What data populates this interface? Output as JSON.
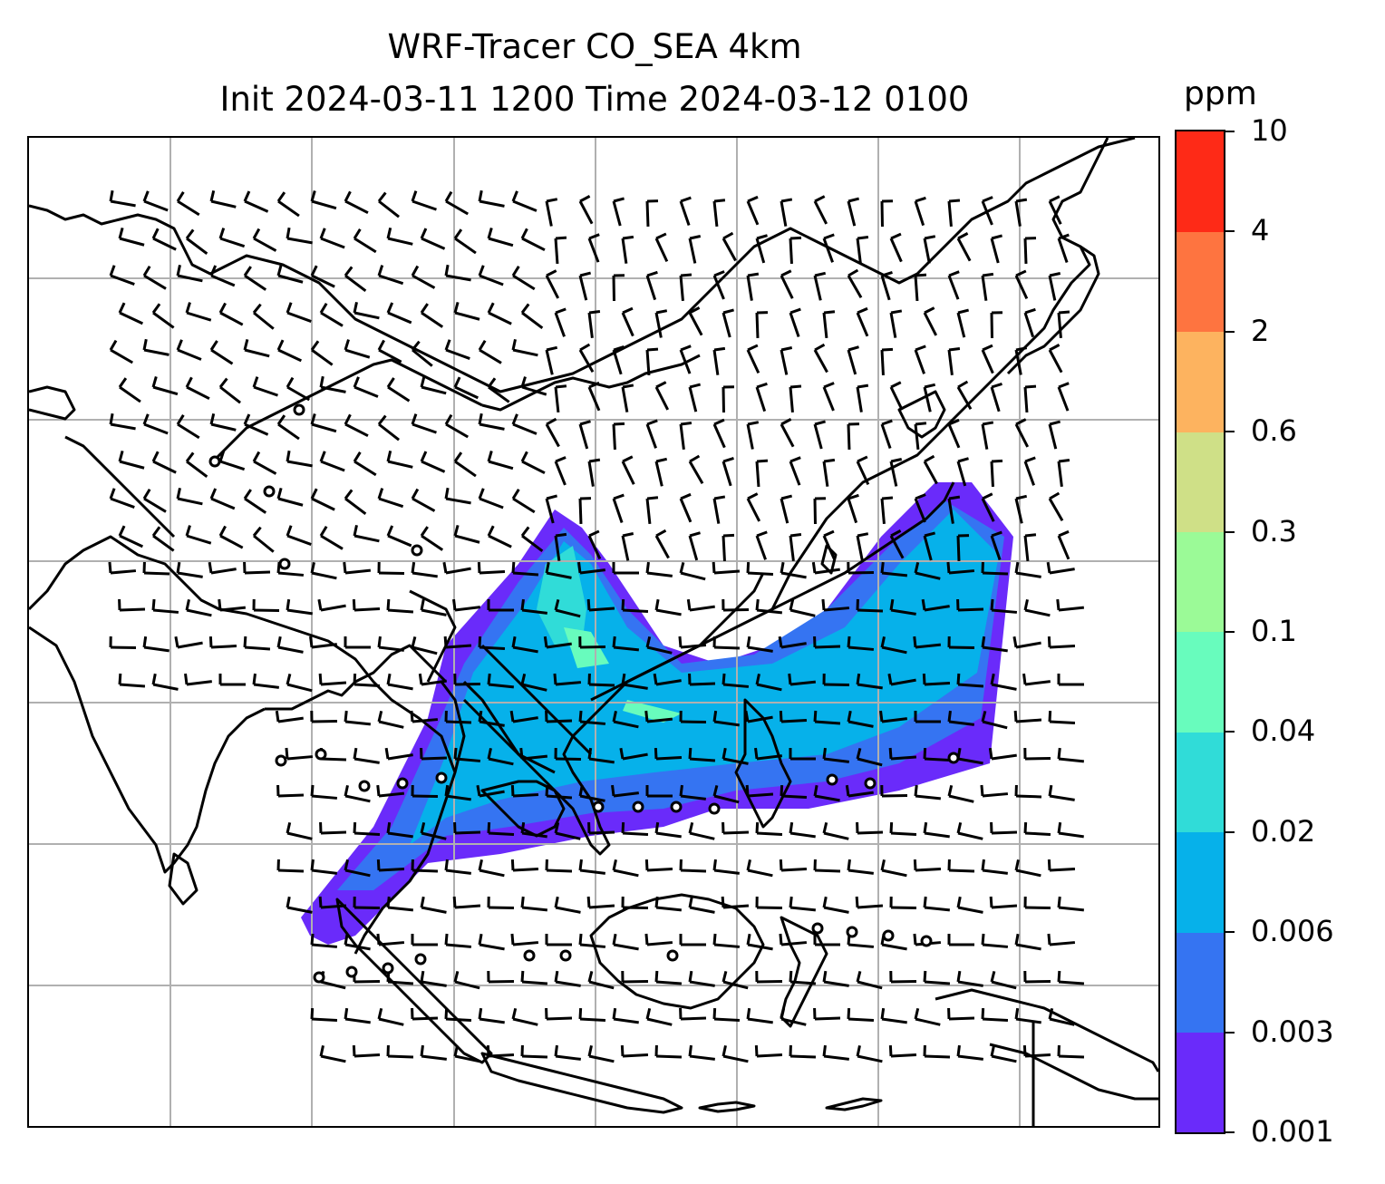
{
  "title": {
    "line1": "WRF-Tracer CO_SEA 4km",
    "line2": "Init 2024-03-11 1200 Time 2024-03-12 0100"
  },
  "colorbar": {
    "unit": "ppm",
    "levels": [
      "0.001",
      "0.003",
      "0.006",
      "0.02",
      "0.04",
      "0.1",
      "0.3",
      "0.6",
      "2",
      "4",
      "10"
    ],
    "colors": [
      "#6a2bfa",
      "#3574f2",
      "#06b1ea",
      "#30dcd8",
      "#68fcbd",
      "#9bfa97",
      "#cfe087",
      "#fdb35f",
      "#fe7440",
      "#fe2a17"
    ]
  },
  "map": {
    "gridlines": true,
    "coastline_color": "#000000",
    "gridline_color": "#b0b0b0",
    "layers": [
      "coastlines",
      "country-borders",
      "co-tracer-shading",
      "wind-barbs",
      "calm-wind-circles"
    ]
  }
}
